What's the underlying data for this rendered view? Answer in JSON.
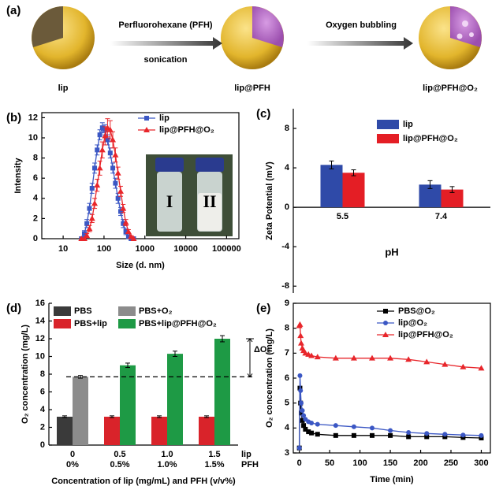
{
  "schematic": {
    "panel_label": "(a)",
    "step1_top": "Perfluorohexane (PFH)",
    "step1_bottom": "sonication",
    "step2_top": "Oxygen bubbling",
    "names": [
      "lip",
      "lip@PFH",
      "lip@PFH@O₂"
    ]
  },
  "chart_data": [
    {
      "type": "line",
      "panel_label": "(b)",
      "x_label": "Size (d. nm)",
      "y_label": "Intensity",
      "xscale": "log",
      "xlim": [
        3,
        200000
      ],
      "xticks": [
        10,
        100,
        1000,
        10000,
        100000
      ],
      "ylim": [
        0,
        12.5
      ],
      "yticks": [
        0,
        2,
        4,
        6,
        8,
        10,
        12
      ],
      "legend": "upper right",
      "inset_labels": [
        "I",
        "II"
      ],
      "x": [
        28,
        33,
        38,
        44,
        51,
        59,
        68,
        79,
        91,
        106,
        122,
        142,
        164,
        190,
        220,
        255,
        295,
        342,
        396,
        459,
        531
      ],
      "series": [
        {
          "name": "lip",
          "color": "#3b57c4",
          "marker": "square",
          "values": [
            0,
            0.5,
            1.5,
            3,
            5,
            7,
            8.8,
            10.3,
            11,
            10.8,
            9.8,
            8.5,
            7,
            5.5,
            4,
            2.7,
            1.5,
            0.7,
            0.2,
            0,
            0
          ],
          "errors": [
            0,
            0.3,
            0.4,
            0.5,
            0.5,
            0.5,
            0.5,
            0.5,
            0.5,
            0.5,
            0.5,
            0.5,
            0.5,
            0.5,
            0.5,
            0.4,
            0.4,
            0.3,
            0.2,
            0,
            0
          ]
        },
        {
          "name": "lip@PFH@O₂",
          "color": "#e8262b",
          "marker": "triangle",
          "values": [
            0,
            0,
            0.3,
            1,
            2,
            3.5,
            5.3,
            7,
            8.8,
            10.2,
            11,
            10.8,
            9.8,
            8.3,
            6.5,
            4.7,
            3,
            1.6,
            0.7,
            0.2,
            0
          ],
          "errors": [
            0,
            0,
            0.2,
            0.3,
            0.4,
            0.5,
            0.6,
            0.7,
            0.8,
            0.9,
            0.9,
            0.9,
            0.8,
            0.7,
            0.6,
            0.5,
            0.4,
            0.3,
            0.2,
            0.1,
            0
          ]
        }
      ]
    },
    {
      "type": "bar",
      "panel_label": "(c)",
      "x_label": "pH",
      "y_label": "Zeta Potential (mV)",
      "categories": [
        "5.5",
        "7.4"
      ],
      "ylim": [
        -8.7,
        10
      ],
      "yticks": [
        -8,
        -4,
        0,
        4,
        8
      ],
      "legend": "upper center",
      "series": [
        {
          "name": "lip",
          "color": "#2f4aa8",
          "values": [
            4.3,
            2.3
          ],
          "errors": [
            0.4,
            0.4
          ]
        },
        {
          "name": "lip@PFH@O₂",
          "color": "#e41e25",
          "values": [
            3.5,
            1.8
          ],
          "errors": [
            0.3,
            0.3
          ]
        }
      ]
    },
    {
      "type": "bar",
      "panel_label": "(d)",
      "x_label": "Concentration of lip (mg/mL) and PFH (v/v%)",
      "y_label": "O₂ concentration (mg/L)",
      "categories": [
        "0",
        "0.5",
        "1.0",
        "1.5"
      ],
      "categories2": [
        "0%",
        "0.5%",
        "1.0%",
        "1.5%"
      ],
      "row_labels": [
        "lip",
        "PFH"
      ],
      "ylim": [
        0,
        16
      ],
      "yticks": [
        0,
        2,
        4,
        6,
        8,
        10,
        12,
        14,
        16
      ],
      "legend": "upper left",
      "reference_line": 7.7,
      "annotation": "ΔO₂",
      "series": [
        {
          "name": "PBS",
          "color": "#3a3a3a",
          "values": [
            3.2,
            null,
            null,
            null
          ],
          "errors": [
            0.1,
            null,
            null,
            null
          ]
        },
        {
          "name": "PBS+O₂",
          "color": "#8c8c8c",
          "values": [
            7.7,
            null,
            null,
            null
          ],
          "errors": [
            0.15,
            null,
            null,
            null
          ]
        },
        {
          "name": "PBS+lip",
          "color": "#d9232a",
          "values": [
            null,
            3.2,
            3.2,
            3.2
          ],
          "errors": [
            null,
            0.1,
            0.1,
            0.1
          ]
        },
        {
          "name": "PBS+lip@PFH@O₂",
          "color": "#1e9a45",
          "values": [
            null,
            9.0,
            10.3,
            12.0
          ],
          "errors": [
            null,
            0.25,
            0.3,
            0.35
          ]
        }
      ]
    },
    {
      "type": "line",
      "panel_label": "(e)",
      "x_label": "Time (min)",
      "y_label": "O₂ concentration (mg/L)",
      "xlim": [
        -10,
        315
      ],
      "xticks": [
        0,
        50,
        100,
        150,
        200,
        250,
        300
      ],
      "ylim": [
        3,
        9
      ],
      "yticks": [
        3,
        4,
        5,
        6,
        7,
        8,
        9
      ],
      "legend": "upper right",
      "x": [
        0,
        1,
        2,
        3,
        5,
        7,
        10,
        15,
        20,
        30,
        60,
        90,
        120,
        150,
        180,
        210,
        240,
        270,
        300
      ],
      "series": [
        {
          "name": "PBS@O₂",
          "color": "#000000",
          "marker": "square",
          "values": [
            3.2,
            5.6,
            5.0,
            4.6,
            4.3,
            4.1,
            3.95,
            3.85,
            3.8,
            3.75,
            3.7,
            3.7,
            3.7,
            3.7,
            3.65,
            3.65,
            3.65,
            3.62,
            3.6
          ]
        },
        {
          "name": "lip@O₂",
          "color": "#3b57c4",
          "marker": "circle",
          "values": [
            3.2,
            6.1,
            5.5,
            5.0,
            4.7,
            4.5,
            4.35,
            4.25,
            4.2,
            4.15,
            4.1,
            4.05,
            4.0,
            3.9,
            3.82,
            3.78,
            3.75,
            3.72,
            3.7
          ]
        },
        {
          "name": "lip@PFH@O₂",
          "color": "#e8262b",
          "marker": "triangle",
          "values": [
            8.1,
            8.15,
            7.7,
            7.4,
            7.2,
            7.1,
            7.0,
            6.95,
            6.9,
            6.85,
            6.8,
            6.8,
            6.8,
            6.8,
            6.75,
            6.65,
            6.55,
            6.45,
            6.4
          ]
        }
      ]
    }
  ]
}
